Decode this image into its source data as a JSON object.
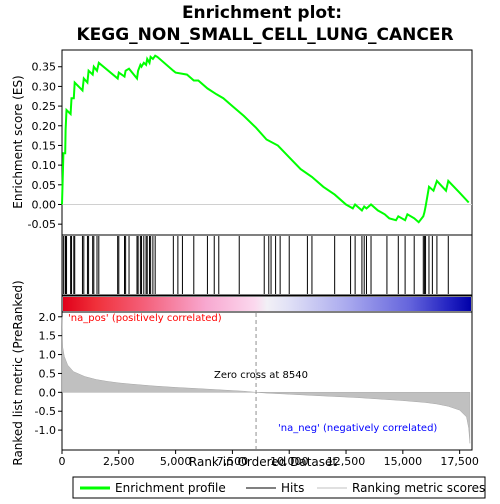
{
  "title": "Enrichment plot: KEGG_NON_SMALL_CELL_LUNG_CANCER",
  "colors": {
    "enrichment_line": "#00ff00",
    "hits": "#000000",
    "ranking_fill": "#c0c0c0",
    "pos_label": "#ff0000",
    "neg_label": "#0000ff",
    "zero_cross": "#909090"
  },
  "chart_data": [
    {
      "type": "line",
      "name": "enrichment-profile",
      "ylabel": "Enrichment score (ES)",
      "xlim": [
        0,
        18000
      ],
      "ylim": [
        -0.075,
        0.39
      ],
      "yticks": [
        -0.05,
        0.0,
        0.05,
        0.1,
        0.15,
        0.2,
        0.25,
        0.3,
        0.35
      ],
      "ytick_labels": [
        "-0.05",
        "0.00",
        "0.05",
        "0.10",
        "0.15",
        "0.20",
        "0.25",
        "0.30",
        "0.35"
      ],
      "series": [
        {
          "name": "Enrichment profile",
          "points": [
            [
              0,
              0.0
            ],
            [
              60,
              0.13
            ],
            [
              140,
              0.13
            ],
            [
              160,
              0.19
            ],
            [
              200,
              0.24
            ],
            [
              380,
              0.23
            ],
            [
              420,
              0.27
            ],
            [
              520,
              0.27
            ],
            [
              560,
              0.31
            ],
            [
              900,
              0.29
            ],
            [
              960,
              0.32
            ],
            [
              1120,
              0.31
            ],
            [
              1170,
              0.34
            ],
            [
              1350,
              0.33
            ],
            [
              1400,
              0.35
            ],
            [
              1540,
              0.34
            ],
            [
              1620,
              0.36
            ],
            [
              2450,
              0.32
            ],
            [
              2500,
              0.335
            ],
            [
              2750,
              0.325
            ],
            [
              2800,
              0.34
            ],
            [
              2950,
              0.345
            ],
            [
              3300,
              0.32
            ],
            [
              3350,
              0.34
            ],
            [
              3450,
              0.355
            ],
            [
              3500,
              0.35
            ],
            [
              3600,
              0.36
            ],
            [
              3700,
              0.355
            ],
            [
              3750,
              0.37
            ],
            [
              3850,
              0.36
            ],
            [
              3900,
              0.375
            ],
            [
              4000,
              0.37
            ],
            [
              4100,
              0.378
            ],
            [
              4200,
              0.375
            ],
            [
              4900,
              0.34
            ],
            [
              5000,
              0.335
            ],
            [
              5500,
              0.33
            ],
            [
              5800,
              0.315
            ],
            [
              6000,
              0.315
            ],
            [
              6400,
              0.295
            ],
            [
              6800,
              0.28
            ],
            [
              7100,
              0.27
            ],
            [
              7500,
              0.25
            ],
            [
              8000,
              0.225
            ],
            [
              8540,
              0.195
            ],
            [
              9000,
              0.165
            ],
            [
              9500,
              0.15
            ],
            [
              10000,
              0.12
            ],
            [
              10500,
              0.09
            ],
            [
              11000,
              0.07
            ],
            [
              11500,
              0.045
            ],
            [
              12000,
              0.025
            ],
            [
              12500,
              0.0
            ],
            [
              12800,
              -0.01
            ],
            [
              12900,
              0.0
            ],
            [
              13200,
              -0.015
            ],
            [
              13300,
              -0.005
            ],
            [
              13400,
              -0.01
            ],
            [
              13600,
              0.0
            ],
            [
              13900,
              -0.015
            ],
            [
              14200,
              -0.025
            ],
            [
              14400,
              -0.035
            ],
            [
              14700,
              -0.04
            ],
            [
              14800,
              -0.03
            ],
            [
              15100,
              -0.04
            ],
            [
              15200,
              -0.025
            ],
            [
              15500,
              -0.035
            ],
            [
              15700,
              -0.045
            ],
            [
              15900,
              -0.03
            ],
            [
              15950,
              -0.02
            ],
            [
              16000,
              -0.005
            ],
            [
              16150,
              0.045
            ],
            [
              16350,
              0.035
            ],
            [
              16500,
              0.06
            ],
            [
              16900,
              0.035
            ],
            [
              17000,
              0.06
            ],
            [
              17500,
              0.03
            ],
            [
              17900,
              0.005
            ]
          ]
        }
      ]
    },
    {
      "type": "scatter",
      "name": "hits",
      "xlim": [
        0,
        18000
      ],
      "x": [
        60,
        140,
        160,
        200,
        380,
        420,
        520,
        560,
        900,
        960,
        1120,
        1170,
        1350,
        1400,
        1540,
        1620,
        2450,
        2500,
        2750,
        2800,
        2950,
        3300,
        3350,
        3450,
        3500,
        3600,
        3700,
        3750,
        3850,
        3900,
        4000,
        4100,
        4900,
        5100,
        5300,
        5800,
        6400,
        6700,
        6900,
        7800,
        8900,
        9100,
        9200,
        9400,
        9600,
        10000,
        10800,
        11000,
        12000,
        12700,
        12900,
        13200,
        13300,
        13400,
        13600,
        14300,
        14800,
        15100,
        15500,
        15900,
        15950,
        16000,
        16150,
        16300,
        16500,
        17000
      ]
    },
    {
      "type": "area",
      "name": "ranking-metric",
      "xlabel": "Rank in Ordered Dataset",
      "ylabel": "Ranked list metric (PreRanked)",
      "xlim": [
        0,
        18000
      ],
      "ylim": [
        -1.5,
        2.1
      ],
      "xticks": [
        0,
        2500,
        5000,
        7500,
        10000,
        12500,
        15000,
        17500
      ],
      "xtick_labels": [
        "0",
        "2,500",
        "5,000",
        "7,500",
        "10,000",
        "12,500",
        "15,000",
        "17,500"
      ],
      "yticks": [
        -1.0,
        -0.5,
        0.0,
        0.5,
        1.0,
        1.5,
        2.0
      ],
      "ytick_labels": [
        "-1.0",
        "-0.5",
        "0.0",
        "0.5",
        "1.0",
        "1.5",
        "2.0"
      ],
      "points": [
        [
          0,
          2.0
        ],
        [
          30,
          1.2
        ],
        [
          100,
          0.95
        ],
        [
          250,
          0.72
        ],
        [
          500,
          0.55
        ],
        [
          1000,
          0.42
        ],
        [
          1500,
          0.34
        ],
        [
          2000,
          0.29
        ],
        [
          2500,
          0.25
        ],
        [
          3000,
          0.22
        ],
        [
          4000,
          0.17
        ],
        [
          5000,
          0.13
        ],
        [
          6000,
          0.1
        ],
        [
          7000,
          0.065
        ],
        [
          8000,
          0.03
        ],
        [
          8540,
          0.0
        ],
        [
          9000,
          -0.02
        ],
        [
          10000,
          -0.05
        ],
        [
          11000,
          -0.08
        ],
        [
          12000,
          -0.11
        ],
        [
          13000,
          -0.14
        ],
        [
          14000,
          -0.18
        ],
        [
          15000,
          -0.22
        ],
        [
          16000,
          -0.27
        ],
        [
          16500,
          -0.31
        ],
        [
          17000,
          -0.37
        ],
        [
          17500,
          -0.47
        ],
        [
          17800,
          -0.65
        ],
        [
          17900,
          -0.95
        ],
        [
          17950,
          -1.35
        ]
      ],
      "zero_cross_rank": 8540,
      "zero_cross_label": "Zero cross at 8540",
      "pos_label": "'na_pos' (positively correlated)",
      "neg_label": "'na_neg' (negatively correlated)"
    }
  ],
  "legend": {
    "items": [
      {
        "label": "Enrichment profile",
        "color": "#00ff00"
      },
      {
        "label": "Hits",
        "color": "#000000"
      },
      {
        "label": "Ranking metric scores",
        "color": "#c0c0c0"
      }
    ]
  }
}
